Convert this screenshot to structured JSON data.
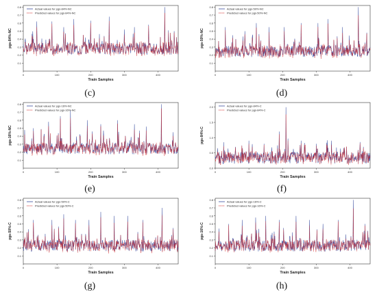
{
  "colors": {
    "actual": "#3b4fa0",
    "predicted": "#d42a2a",
    "axis": "#333333"
  },
  "chart_data": [
    {
      "panel": "(c)",
      "type": "line",
      "ylabel": "pgs-84%-NC",
      "xlabel": "Train Samples",
      "legend": [
        "Actual values for pgs-84%-NC",
        "Predicted values for pgs-84%-NC"
      ],
      "legend_position": "top-left",
      "xlim": [
        0,
        460
      ],
      "ylim": [
        0.0,
        0.82
      ],
      "xticks": [
        "0",
        "100",
        "200",
        "300",
        "400"
      ],
      "yticks": [
        "0.1",
        "0.2",
        "0.3",
        "0.4",
        "0.5",
        "0.6",
        "0.7",
        "0.8"
      ],
      "baseline": 0.27,
      "spikes": [
        [
          40,
          0.62
        ],
        [
          85,
          0.62
        ],
        [
          120,
          0.55
        ],
        [
          150,
          0.65
        ],
        [
          200,
          0.63
        ],
        [
          255,
          0.68
        ],
        [
          300,
          0.52
        ],
        [
          330,
          0.55
        ],
        [
          372,
          0.58
        ],
        [
          420,
          0.8
        ],
        [
          448,
          0.5
        ]
      ]
    },
    {
      "panel": "(d)",
      "type": "line",
      "ylabel": "pgs-50%-NC",
      "xlabel": "Train Samples",
      "legend": [
        "Actual values for pgs-50%-NC",
        "Predicted values for pgs-50%-NC"
      ],
      "legend_position": "top-left",
      "xlim": [
        0,
        460
      ],
      "ylim": [
        0.0,
        0.82
      ],
      "xticks": [
        "0",
        "100",
        "200",
        "300",
        "400"
      ],
      "yticks": [
        "0.1",
        "0.2",
        "0.3",
        "0.4",
        "0.5",
        "0.6",
        "0.7",
        "0.8"
      ],
      "baseline": 0.24,
      "spikes": [
        [
          30,
          0.55
        ],
        [
          88,
          0.5
        ],
        [
          122,
          0.6
        ],
        [
          160,
          0.55
        ],
        [
          205,
          0.55
        ],
        [
          255,
          0.6
        ],
        [
          305,
          0.6
        ],
        [
          335,
          0.65
        ],
        [
          378,
          0.55
        ],
        [
          425,
          0.8
        ],
        [
          450,
          0.48
        ]
      ]
    },
    {
      "panel": "(e)",
      "type": "line",
      "ylabel": "pgs-16%-NC",
      "xlabel": "Train Samples",
      "legend": [
        "Actual values for pgs-16%-NC",
        "Predicted values for pgs-16%-NC"
      ],
      "legend_position": "top-left",
      "xlim": [
        0,
        460
      ],
      "ylim": [
        0.0,
        0.82
      ],
      "xticks": [
        "0",
        "100",
        "200",
        "300",
        "400"
      ],
      "yticks": [
        "0.1",
        "0.2",
        "0.3",
        "0.4",
        "0.5",
        "0.6",
        "0.7",
        "0.8"
      ],
      "baseline": 0.24,
      "spikes": [
        [
          30,
          0.5
        ],
        [
          75,
          0.58
        ],
        [
          110,
          0.65
        ],
        [
          140,
          0.72
        ],
        [
          190,
          0.6
        ],
        [
          230,
          0.55
        ],
        [
          280,
          0.6
        ],
        [
          330,
          0.55
        ],
        [
          365,
          0.52
        ],
        [
          410,
          0.8
        ],
        [
          445,
          0.45
        ]
      ]
    },
    {
      "panel": "(f)",
      "type": "line",
      "ylabel": "pgs-84%-C",
      "xlabel": "Train Samples",
      "legend": [
        "Actual values for pgs-84%-C",
        "Predicted values for pgs-84%-C"
      ],
      "legend_position": "top-left",
      "xlim": [
        0,
        460
      ],
      "ylim": [
        0.0,
        2.15
      ],
      "xticks": [
        "0",
        "100",
        "200",
        "300",
        "400"
      ],
      "yticks": [
        "0.0",
        "0.5",
        "1.0",
        "1.5",
        "2.0"
      ],
      "baseline": 0.32,
      "spikes": [
        [
          25,
          0.85
        ],
        [
          60,
          0.7
        ],
        [
          100,
          0.9
        ],
        [
          145,
          0.8
        ],
        [
          190,
          1.2
        ],
        [
          210,
          2.0
        ],
        [
          255,
          0.9
        ],
        [
          300,
          0.8
        ],
        [
          345,
          0.9
        ],
        [
          390,
          0.7
        ],
        [
          440,
          0.7
        ]
      ]
    },
    {
      "panel": "(g)",
      "type": "line",
      "ylabel": "pgs-50%-C",
      "xlabel": "Train Samples",
      "legend": [
        "Actual values for pgs-50%-C",
        "Predicted values for pgs-50%-C"
      ],
      "legend_position": "top-left",
      "xlim": [
        0,
        460
      ],
      "ylim": [
        0.0,
        0.82
      ],
      "xticks": [
        "0",
        "100",
        "200",
        "300",
        "400"
      ],
      "yticks": [
        "0.1",
        "0.2",
        "0.3",
        "0.4",
        "0.5",
        "0.6",
        "0.7",
        "0.8"
      ],
      "baseline": 0.22,
      "spikes": [
        [
          30,
          0.55
        ],
        [
          85,
          0.55
        ],
        [
          120,
          0.62
        ],
        [
          155,
          0.55
        ],
        [
          195,
          0.55
        ],
        [
          230,
          0.65
        ],
        [
          270,
          0.6
        ],
        [
          310,
          0.6
        ],
        [
          355,
          0.55
        ],
        [
          412,
          0.7
        ],
        [
          445,
          0.45
        ]
      ]
    },
    {
      "panel": "(h)",
      "type": "line",
      "ylabel": "pgs-16%-C",
      "xlabel": "Train Samples",
      "legend": [
        "Actual values for pgs-16%-C",
        "Predicted values for pgs-16%-C"
      ],
      "legend_position": "top-left",
      "xlim": [
        0,
        460
      ],
      "ylim": [
        0.0,
        0.82
      ],
      "xticks": [
        "0",
        "100",
        "200",
        "300",
        "400"
      ],
      "yticks": [
        "0.1",
        "0.2",
        "0.3",
        "0.4",
        "0.5",
        "0.6",
        "0.7",
        "0.8"
      ],
      "baseline": 0.22,
      "spikes": [
        [
          40,
          0.5
        ],
        [
          80,
          0.55
        ],
        [
          120,
          0.58
        ],
        [
          150,
          0.6
        ],
        [
          190,
          0.55
        ],
        [
          240,
          0.6
        ],
        [
          280,
          0.55
        ],
        [
          320,
          0.5
        ],
        [
          365,
          0.55
        ],
        [
          410,
          0.8
        ],
        [
          445,
          0.5
        ]
      ]
    }
  ]
}
